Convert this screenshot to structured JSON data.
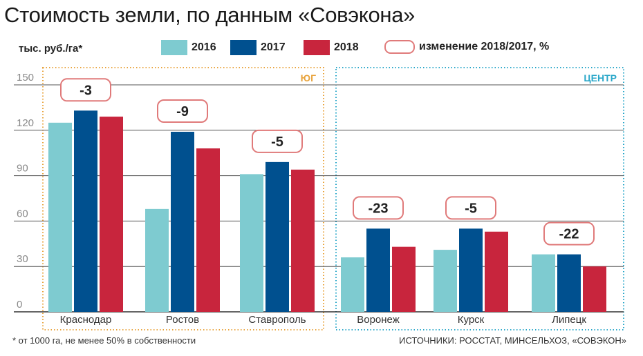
{
  "title": "Стоимость земли, по данным «Совэкона»",
  "unit_label": "тыс. руб./га*",
  "legend": [
    {
      "label": "2016",
      "color": "#7ecbd0"
    },
    {
      "label": "2017",
      "color": "#00508f"
    },
    {
      "label": "2018",
      "color": "#c8253d"
    }
  ],
  "change_legend_label": "изменение 2018/2017, %",
  "footnote": "* от 1000 га, не менее 50% в собственности",
  "sources": "ИСТОЧНИКИ: РОССТАТ, МИНСЕЛЬХОЗ, «СОВЭКОН»",
  "chart_data": {
    "type": "bar",
    "title": "Стоимость земли, по данным «Совэкона»",
    "ylabel": "тыс. руб./га*",
    "ylim": [
      0,
      150
    ],
    "yticks": [
      "0",
      "30",
      "60",
      "90",
      "120",
      "150"
    ],
    "grid": true,
    "legend_position": "top",
    "categories": [
      "Краснодар",
      "Ростов",
      "Ставрополь",
      "Воронеж",
      "Курск",
      "Липецк"
    ],
    "groups": [
      {
        "label": "ЮГ",
        "categories": [
          "Краснодар",
          "Ростов",
          "Ставрополь"
        ],
        "color": "#e8a33c"
      },
      {
        "label": "ЦЕНТР",
        "categories": [
          "Воронеж",
          "Курск",
          "Липецк"
        ],
        "color": "#2aa7c9"
      }
    ],
    "series": [
      {
        "name": "2016",
        "color": "#7ecbd0",
        "values": [
          125,
          68,
          91,
          36,
          41,
          38
        ]
      },
      {
        "name": "2017",
        "color": "#00508f",
        "values": [
          133,
          119,
          99,
          55,
          55,
          38
        ]
      },
      {
        "name": "2018",
        "color": "#c8253d",
        "values": [
          129,
          108,
          94,
          43,
          53,
          30
        ]
      }
    ],
    "change_labels": [
      "-3",
      "-9",
      "-5",
      "-23",
      "-5",
      "-22"
    ]
  }
}
